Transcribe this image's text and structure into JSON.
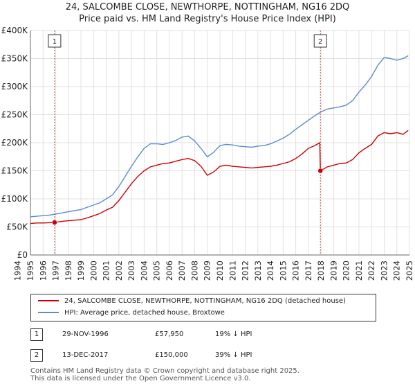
{
  "title_line1": "24, SALCOMBE CLOSE, NEWTHORPE, NOTTINGHAM, NG16 2DQ",
  "title_line2": "Price paid vs. HM Land Registry's House Price Index (HPI)",
  "colors": {
    "property": "#cc0000",
    "hpi": "#5b8bd0",
    "marker_line": "#cc0000",
    "grid": "#e0e0e0"
  },
  "chart_data": {
    "type": "line",
    "title": "Price paid vs. HM Land Registry's House Price Index (HPI)",
    "xlabel": "",
    "ylabel": "",
    "xlim": [
      1995,
      2025
    ],
    "ylim": [
      0,
      400000
    ],
    "y_ticks": [
      {
        "value": 0,
        "label": "£0"
      },
      {
        "value": 50000,
        "label": "£50K"
      },
      {
        "value": 100000,
        "label": "£100K"
      },
      {
        "value": 150000,
        "label": "£150K"
      },
      {
        "value": 200000,
        "label": "£200K"
      },
      {
        "value": 250000,
        "label": "£250K"
      },
      {
        "value": 300000,
        "label": "£300K"
      },
      {
        "value": 350000,
        "label": "£350K"
      },
      {
        "value": 400000,
        "label": "£400K"
      }
    ],
    "x_ticks": [
      "1994",
      "1995",
      "1996",
      "1997",
      "1998",
      "1999",
      "2000",
      "2001",
      "2002",
      "2003",
      "2004",
      "2005",
      "2006",
      "2007",
      "2008",
      "2009",
      "2010",
      "2011",
      "2012",
      "2013",
      "2014",
      "2015",
      "2016",
      "2017",
      "2018",
      "2019",
      "2020",
      "2021",
      "2022",
      "2023",
      "2024",
      "2025"
    ],
    "series": [
      {
        "name": "24, SALCOMBE CLOSE, NEWTHORPE, NOTTINGHAM, NG16 2DQ (detached house)",
        "color": "#cc0000",
        "points": [
          [
            1995.0,
            56000
          ],
          [
            1995.5,
            57000
          ],
          [
            1996.0,
            57000
          ],
          [
            1996.5,
            57500
          ],
          [
            1996.91,
            57950
          ],
          [
            1997.5,
            60000
          ],
          [
            1998.0,
            61000
          ],
          [
            1998.5,
            62000
          ],
          [
            1999.0,
            63000
          ],
          [
            1999.5,
            66000
          ],
          [
            2000.0,
            70000
          ],
          [
            2000.5,
            74000
          ],
          [
            2001.0,
            80000
          ],
          [
            2001.5,
            85000
          ],
          [
            2002.0,
            97000
          ],
          [
            2002.5,
            112000
          ],
          [
            2003.0,
            127000
          ],
          [
            2003.5,
            140000
          ],
          [
            2004.0,
            150000
          ],
          [
            2004.5,
            157000
          ],
          [
            2005.0,
            160000
          ],
          [
            2005.5,
            163000
          ],
          [
            2006.0,
            164000
          ],
          [
            2006.5,
            167000
          ],
          [
            2007.0,
            170000
          ],
          [
            2007.5,
            172000
          ],
          [
            2008.0,
            168000
          ],
          [
            2008.5,
            158000
          ],
          [
            2009.0,
            142000
          ],
          [
            2009.5,
            148000
          ],
          [
            2010.0,
            158000
          ],
          [
            2010.5,
            160000
          ],
          [
            2011.0,
            158000
          ],
          [
            2011.5,
            157000
          ],
          [
            2012.0,
            156000
          ],
          [
            2012.5,
            155000
          ],
          [
            2013.0,
            156000
          ],
          [
            2013.5,
            157000
          ],
          [
            2014.0,
            158000
          ],
          [
            2014.5,
            160000
          ],
          [
            2015.0,
            163000
          ],
          [
            2015.5,
            166000
          ],
          [
            2016.0,
            172000
          ],
          [
            2016.5,
            180000
          ],
          [
            2017.0,
            190000
          ],
          [
            2017.5,
            195000
          ],
          [
            2017.9,
            200000
          ],
          [
            2017.95,
            150000
          ],
          [
            2018.5,
            157000
          ],
          [
            2019.0,
            160000
          ],
          [
            2019.5,
            163000
          ],
          [
            2020.0,
            164000
          ],
          [
            2020.5,
            170000
          ],
          [
            2021.0,
            182000
          ],
          [
            2021.5,
            190000
          ],
          [
            2022.0,
            197000
          ],
          [
            2022.5,
            212000
          ],
          [
            2023.0,
            218000
          ],
          [
            2023.5,
            216000
          ],
          [
            2024.0,
            218000
          ],
          [
            2024.5,
            215000
          ],
          [
            2024.9,
            222000
          ]
        ]
      },
      {
        "name": "HPI: Average price, detached house, Broxtowe",
        "color": "#5b8bd0",
        "points": [
          [
            1995.0,
            68000
          ],
          [
            1995.5,
            69000
          ],
          [
            1996.0,
            70000
          ],
          [
            1996.5,
            71000
          ],
          [
            1997.0,
            73000
          ],
          [
            1997.5,
            75000
          ],
          [
            1998.0,
            77000
          ],
          [
            1998.5,
            79000
          ],
          [
            1999.0,
            81000
          ],
          [
            1999.5,
            85000
          ],
          [
            2000.0,
            89000
          ],
          [
            2000.5,
            93000
          ],
          [
            2001.0,
            100000
          ],
          [
            2001.5,
            107000
          ],
          [
            2002.0,
            122000
          ],
          [
            2002.5,
            140000
          ],
          [
            2003.0,
            158000
          ],
          [
            2003.5,
            175000
          ],
          [
            2004.0,
            190000
          ],
          [
            2004.5,
            198000
          ],
          [
            2005.0,
            198000
          ],
          [
            2005.5,
            197000
          ],
          [
            2006.0,
            200000
          ],
          [
            2006.5,
            204000
          ],
          [
            2007.0,
            210000
          ],
          [
            2007.5,
            212000
          ],
          [
            2008.0,
            203000
          ],
          [
            2008.5,
            190000
          ],
          [
            2009.0,
            175000
          ],
          [
            2009.5,
            183000
          ],
          [
            2010.0,
            195000
          ],
          [
            2010.5,
            197000
          ],
          [
            2011.0,
            196000
          ],
          [
            2011.5,
            194000
          ],
          [
            2012.0,
            193000
          ],
          [
            2012.5,
            192000
          ],
          [
            2013.0,
            194000
          ],
          [
            2013.5,
            195000
          ],
          [
            2014.0,
            198000
          ],
          [
            2014.5,
            203000
          ],
          [
            2015.0,
            208000
          ],
          [
            2015.5,
            215000
          ],
          [
            2016.0,
            224000
          ],
          [
            2016.5,
            232000
          ],
          [
            2017.0,
            240000
          ],
          [
            2017.5,
            248000
          ],
          [
            2018.0,
            255000
          ],
          [
            2018.5,
            260000
          ],
          [
            2019.0,
            262000
          ],
          [
            2019.5,
            264000
          ],
          [
            2020.0,
            267000
          ],
          [
            2020.5,
            275000
          ],
          [
            2021.0,
            290000
          ],
          [
            2021.5,
            303000
          ],
          [
            2022.0,
            318000
          ],
          [
            2022.5,
            338000
          ],
          [
            2023.0,
            352000
          ],
          [
            2023.5,
            350000
          ],
          [
            2024.0,
            347000
          ],
          [
            2024.5,
            350000
          ],
          [
            2024.9,
            355000
          ]
        ]
      }
    ],
    "annotations": [
      {
        "label": "1",
        "x": 1996.91,
        "y": 57950
      },
      {
        "label": "2",
        "x": 2017.95,
        "y": 150000
      }
    ],
    "legend_position": "bottom"
  },
  "legend": [
    {
      "label": "24, SALCOMBE CLOSE, NEWTHORPE, NOTTINGHAM, NG16 2DQ (detached house)",
      "color": "#cc0000"
    },
    {
      "label": "HPI: Average price, detached house, Broxtowe",
      "color": "#5b8bd0"
    }
  ],
  "table": [
    {
      "num": "1",
      "date": "29-NOV-1996",
      "price": "£57,950",
      "hpi": "19% ↓ HPI"
    },
    {
      "num": "2",
      "date": "13-DEC-2017",
      "price": "£150,000",
      "hpi": "39% ↓ HPI"
    }
  ],
  "footer": {
    "line1": "Contains HM Land Registry data © Crown copyright and database right 2025.",
    "line2": "This data is licensed under the Open Government Licence v3.0."
  }
}
